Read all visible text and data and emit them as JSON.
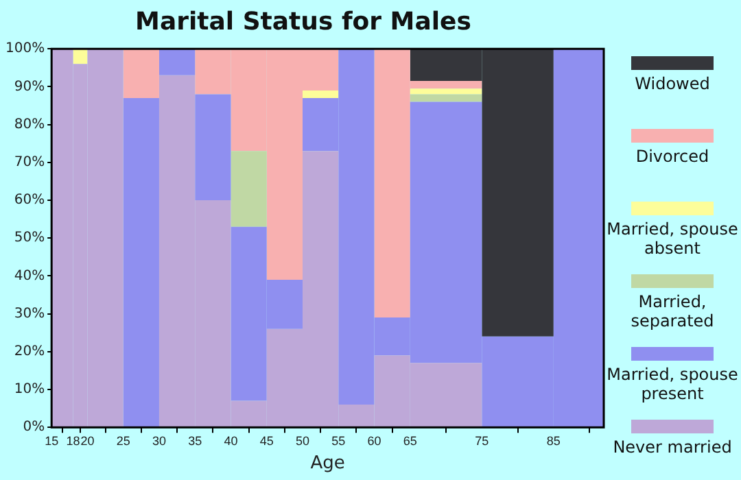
{
  "chart_data": {
    "type": "bar",
    "stacked": true,
    "title": "Marital Status for Males",
    "xlabel": "Age",
    "x": [
      16.5,
      19,
      22.5,
      27.5,
      32.5,
      37.5,
      42.5,
      47.5,
      52.5,
      57.5,
      62.5,
      70,
      80,
      88.5
    ],
    "xlim": [
      15,
      92
    ],
    "xticks": [
      15,
      18,
      20,
      25,
      30,
      35,
      40,
      45,
      50,
      55,
      60,
      65,
      75,
      85
    ],
    "ylim": [
      0,
      100
    ],
    "yticks": [
      {
        "value": 0,
        "label": "0%"
      },
      {
        "value": 10,
        "label": "10%"
      },
      {
        "value": 20,
        "label": "20%"
      },
      {
        "value": 30,
        "label": "30%"
      },
      {
        "value": 40,
        "label": "40%"
      },
      {
        "value": 50,
        "label": "50%"
      },
      {
        "value": 60,
        "label": "60%"
      },
      {
        "value": 70,
        "label": "70%"
      },
      {
        "value": 80,
        "label": "80%"
      },
      {
        "value": 90,
        "label": "90%"
      },
      {
        "value": 100,
        "label": "100%"
      }
    ],
    "legend": "right",
    "series": [
      {
        "name": "Never married",
        "color": "#bea8d8",
        "values": [
          100,
          96,
          100,
          0,
          93,
          60,
          7,
          26,
          73,
          6,
          19,
          17,
          0,
          0
        ]
      },
      {
        "name": "Married, spouse present",
        "color": "#8f8ff0",
        "values": [
          0,
          0,
          0,
          87,
          7,
          28,
          46,
          13,
          14,
          94,
          10,
          69,
          24,
          100
        ]
      },
      {
        "name": "Married, separated",
        "color": "#c0d8a4",
        "values": [
          0,
          0,
          0,
          0,
          0,
          0,
          20,
          0,
          0,
          0,
          0,
          2,
          0,
          0
        ]
      },
      {
        "name": "Married, spouse absent",
        "color": "#fdfd9a",
        "values": [
          0,
          4,
          0,
          0,
          0,
          0,
          0,
          0,
          2,
          0,
          0,
          1.5,
          0,
          0
        ]
      },
      {
        "name": "Divorced",
        "color": "#f8b0b0",
        "values": [
          0,
          0,
          0,
          13,
          0,
          12,
          27,
          61,
          11,
          0,
          71,
          2,
          0,
          0
        ]
      },
      {
        "name": "Widowed",
        "color": "#35363b",
        "values": [
          0,
          0,
          0,
          0,
          0,
          0,
          0,
          0,
          0,
          0,
          0,
          8.5,
          76,
          0
        ]
      }
    ]
  }
}
